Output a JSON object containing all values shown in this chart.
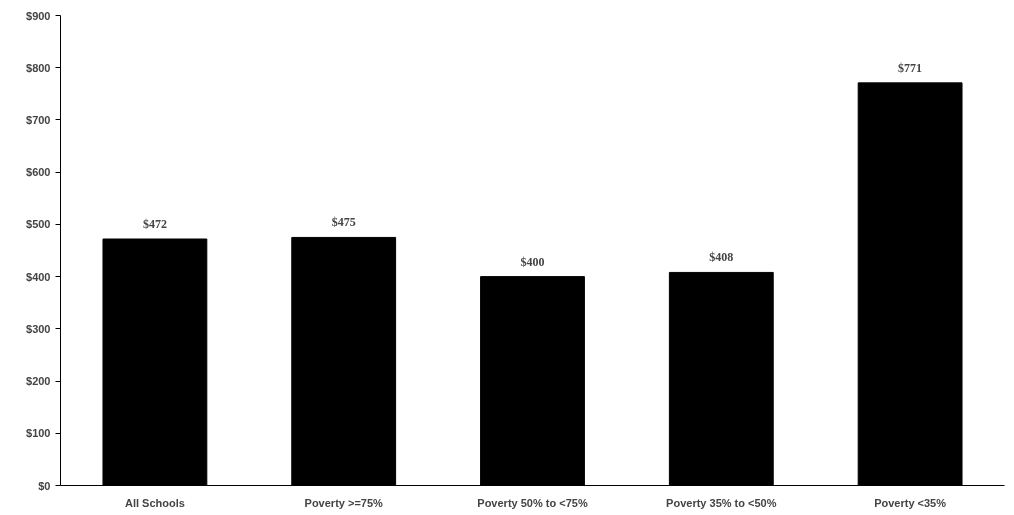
{
  "chart_data": {
    "type": "bar",
    "categories": [
      "All Schools",
      "Poverty >=75%",
      "Poverty 50% to <75%",
      "Poverty 35% to <50%",
      "Poverty <35%"
    ],
    "values": [
      472,
      475,
      400,
      408,
      771
    ],
    "value_labels": [
      "$472",
      "$475",
      "$400",
      "$408",
      "$771"
    ],
    "color": "#000000",
    "ylim": [
      0,
      900
    ],
    "yticks": [
      {
        "value": 0,
        "label": "$0"
      },
      {
        "value": 100,
        "label": "$100"
      },
      {
        "value": 200,
        "label": "$200"
      },
      {
        "value": 300,
        "label": "$300"
      },
      {
        "value": 400,
        "label": "$400"
      },
      {
        "value": 500,
        "label": "$500"
      },
      {
        "value": 600,
        "label": "$600"
      },
      {
        "value": 700,
        "label": "$700"
      },
      {
        "value": 800,
        "label": "$800"
      },
      {
        "value": 900,
        "label": "$900"
      }
    ],
    "grid": false
  }
}
